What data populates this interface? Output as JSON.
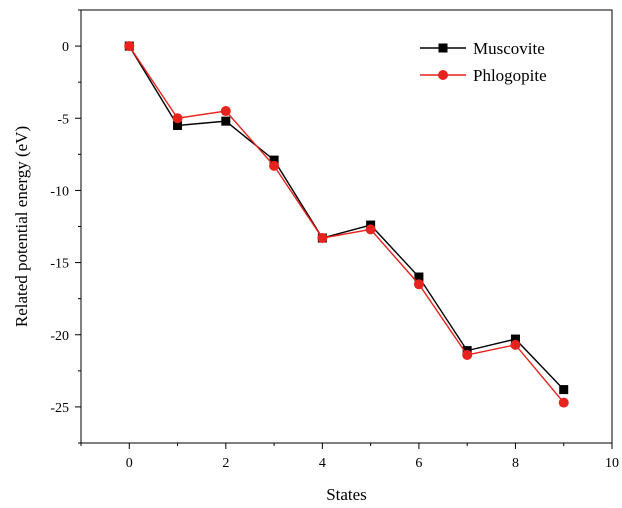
{
  "chart_data": {
    "type": "line",
    "xlabel": "States",
    "ylabel": "Related potential energy (eV)",
    "xlim": [
      -1,
      10
    ],
    "ylim": [
      -27.5,
      2.5
    ],
    "xticks": [
      0,
      2,
      4,
      6,
      8,
      10
    ],
    "yticks": [
      0,
      -5,
      -10,
      -15,
      -20,
      -25
    ],
    "grid": false,
    "legend_position": "top-right",
    "x": [
      0,
      1,
      2,
      3,
      4,
      5,
      6,
      7,
      8,
      9
    ],
    "series": [
      {
        "name": "Muscovite",
        "color": "#000000",
        "marker": "square",
        "values": [
          0,
          -5.5,
          -5.2,
          -7.9,
          -13.3,
          -12.4,
          -16.0,
          -21.1,
          -20.3,
          -23.8
        ]
      },
      {
        "name": "Phlogopite",
        "color": "#e8221c",
        "marker": "circle",
        "values": [
          0,
          -5.0,
          -4.5,
          -8.3,
          -13.3,
          -12.7,
          -16.5,
          -21.4,
          -20.7,
          -24.7
        ]
      }
    ]
  }
}
